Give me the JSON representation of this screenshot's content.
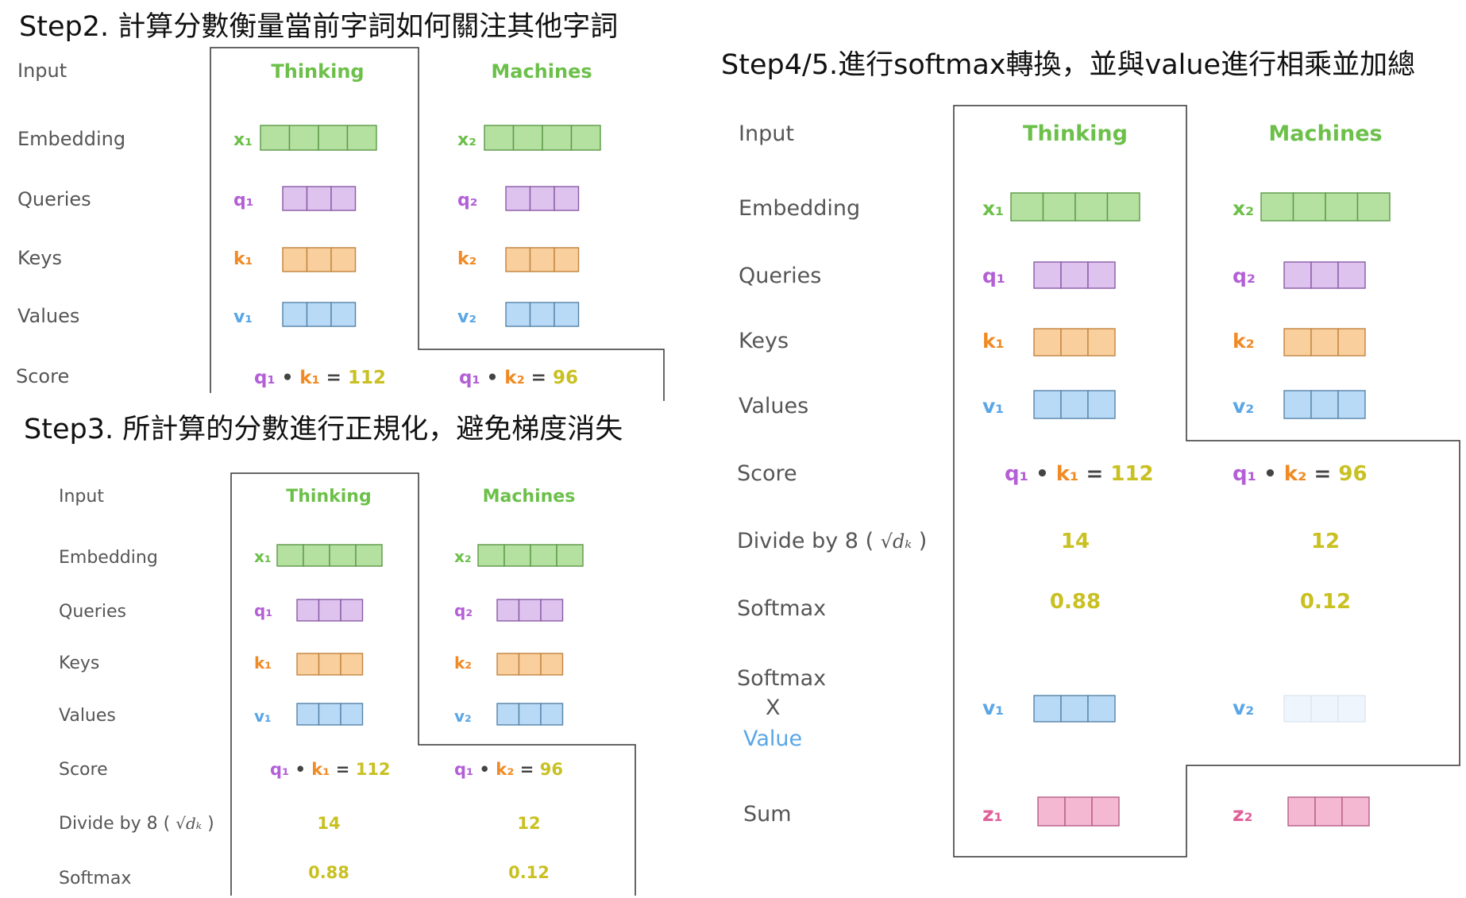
{
  "colors": {
    "green_text": "#6cc04a",
    "purple_text": "#b35fd6",
    "orange_text": "#f08a24",
    "blue_text": "#5aa6e6",
    "pink_text": "#e0609a",
    "yellow_text": "#c9c021",
    "label_text": "#555555",
    "green_fill": "#b4e0a0",
    "green_stroke": "#5b9a46",
    "purple_fill": "#ddc3ee",
    "purple_stroke": "#8a5aa5",
    "orange_fill": "#f8cf9d",
    "orange_stroke": "#c2843e",
    "blue_fill": "#b9daf6",
    "blue_stroke": "#5583a8",
    "pink_fill": "#f4b8d3",
    "pink_stroke": "#b55d84",
    "faded_fill": "#eef5fd",
    "faded_stroke": "#dde7f1"
  },
  "step2": {
    "title": "Step2. 計算分數衡量當前字詞如何關注其他字詞",
    "labels": {
      "input": "Input",
      "embedding": "Embedding",
      "queries": "Queries",
      "keys": "Keys",
      "values": "Values",
      "score": "Score"
    },
    "word1": "Thinking",
    "word2": "Machines",
    "x1": "x₁",
    "x2": "x₂",
    "q1": "q₁",
    "q2": "q₂",
    "k1": "k₁",
    "k2": "k₂",
    "v1": "v₁",
    "v2": "v₂",
    "score1": {
      "q": "q₁",
      "dot": "•",
      "k": "k₁",
      "eq": "=",
      "val": "112"
    },
    "score2": {
      "q": "q₁",
      "dot": "•",
      "k": "k₂",
      "eq": "=",
      "val": "96"
    }
  },
  "step3": {
    "title": "Step3. 所計算的分數進行正規化，避免梯度消失",
    "labels": {
      "input": "Input",
      "embedding": "Embedding",
      "queries": "Queries",
      "keys": "Keys",
      "values": "Values",
      "score": "Score",
      "divide": "Divide by 8 (",
      "divide_close": ")",
      "sqrt_dk": "√dₖ",
      "softmax": "Softmax"
    },
    "word1": "Thinking",
    "word2": "Machines",
    "x1": "x₁",
    "x2": "x₂",
    "q1": "q₁",
    "q2": "q₂",
    "k1": "k₁",
    "k2": "k₂",
    "v1": "v₁",
    "v2": "v₂",
    "score1": {
      "q": "q₁",
      "dot": "•",
      "k": "k₁",
      "eq": "=",
      "val": "112"
    },
    "score2": {
      "q": "q₁",
      "dot": "•",
      "k": "k₂",
      "eq": "=",
      "val": "96"
    },
    "div1": "14",
    "div2": "12",
    "soft1": "0.88",
    "soft2": "0.12"
  },
  "step45": {
    "title": "Step4/5.進行softmax轉換，並與value進行相乘並加總",
    "labels": {
      "input": "Input",
      "embedding": "Embedding",
      "queries": "Queries",
      "keys": "Keys",
      "values": "Values",
      "score": "Score",
      "divide": "Divide by 8 (",
      "divide_close": ")",
      "sqrt_dk": "√dₖ",
      "softmax": "Softmax",
      "softmax2": "Softmax",
      "times": "X",
      "value": "Value",
      "sum": "Sum"
    },
    "word1": "Thinking",
    "word2": "Machines",
    "x1": "x₁",
    "x2": "x₂",
    "q1": "q₁",
    "q2": "q₂",
    "k1": "k₁",
    "k2": "k₂",
    "v1": "v₁",
    "v2": "v₂",
    "z1": "z₁",
    "z2": "z₂",
    "score1": {
      "q": "q₁",
      "dot": "•",
      "k": "k₁",
      "eq": "=",
      "val": "112"
    },
    "score2": {
      "q": "q₁",
      "dot": "•",
      "k": "k₂",
      "eq": "=",
      "val": "96"
    },
    "div1": "14",
    "div2": "12",
    "soft1": "0.88",
    "soft2": "0.12"
  }
}
